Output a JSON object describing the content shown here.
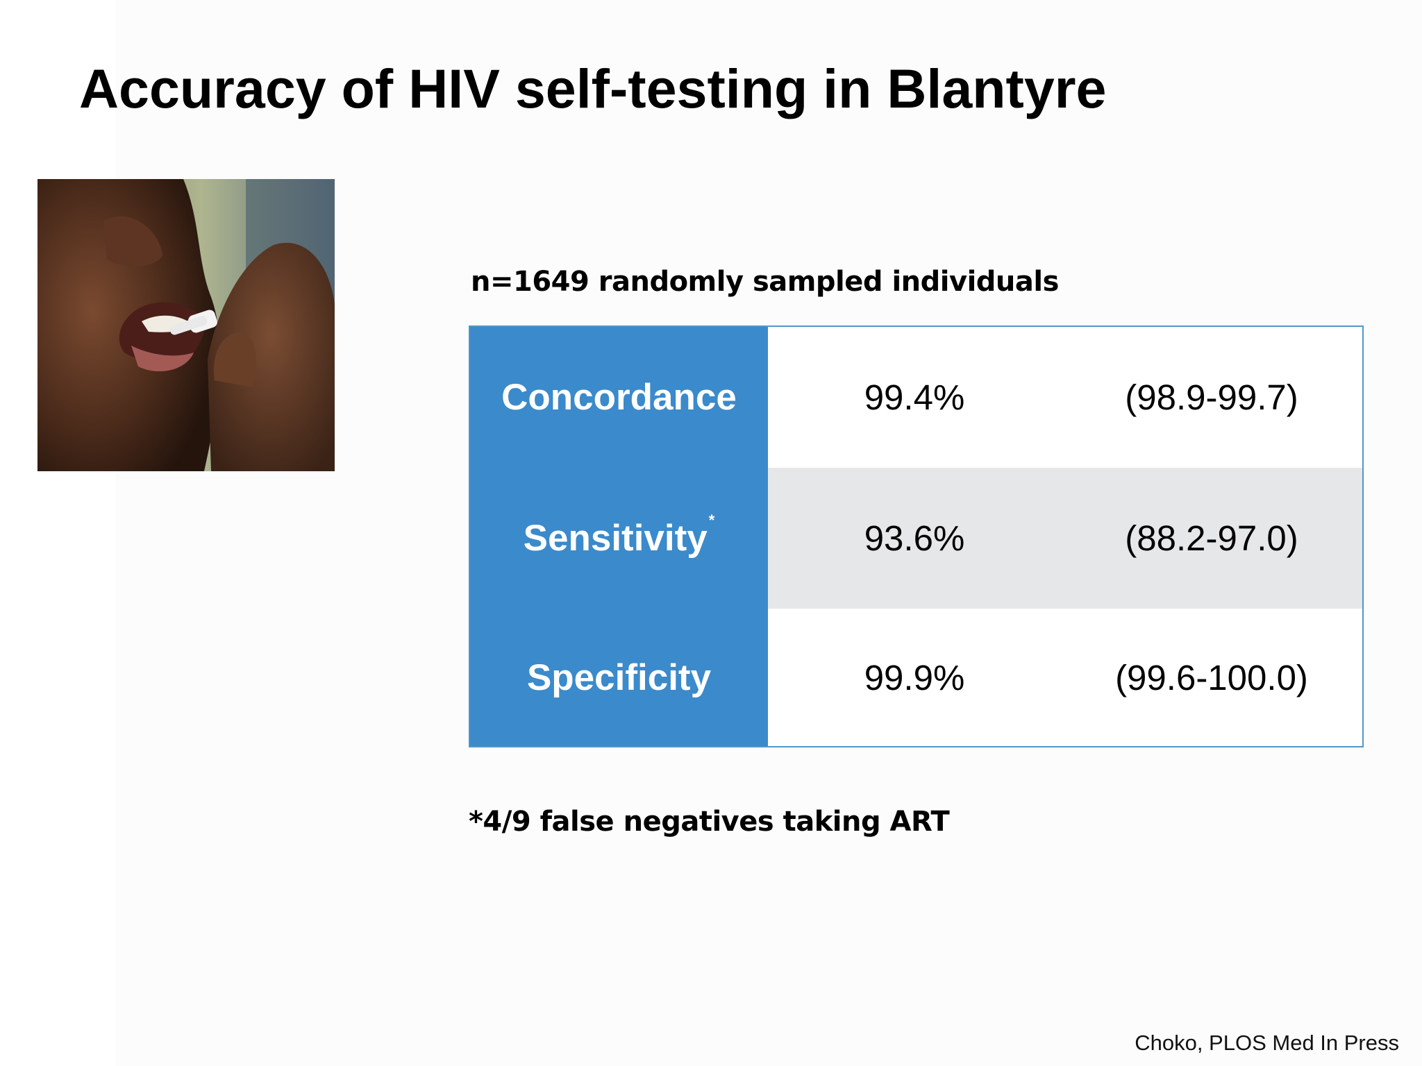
{
  "slide": {
    "title": "Accuracy of HIV self-testing in Blantyre",
    "sample_note": "n=1649 randomly sampled individuals",
    "footnote": "*4/9 false negatives taking ART",
    "citation": "Choko, PLOS Med In Press"
  },
  "photo": {
    "subject": "person-taking-oral-swab-photo"
  },
  "table": {
    "rows": [
      {
        "label": "Concordance",
        "superscript": "",
        "value": "99.4%",
        "ci": "(98.9-99.7)"
      },
      {
        "label": "Sensitivity",
        "superscript": "*",
        "value": "93.6%",
        "ci": "(88.2-97.0)"
      },
      {
        "label": "Specificity",
        "superscript": "",
        "value": "99.9%",
        "ci": "(99.6-100.0)"
      }
    ]
  },
  "colors": {
    "label_column": "#3b8acb",
    "striped_row": "#e6e7e8",
    "table_border": "#4f97c9"
  }
}
